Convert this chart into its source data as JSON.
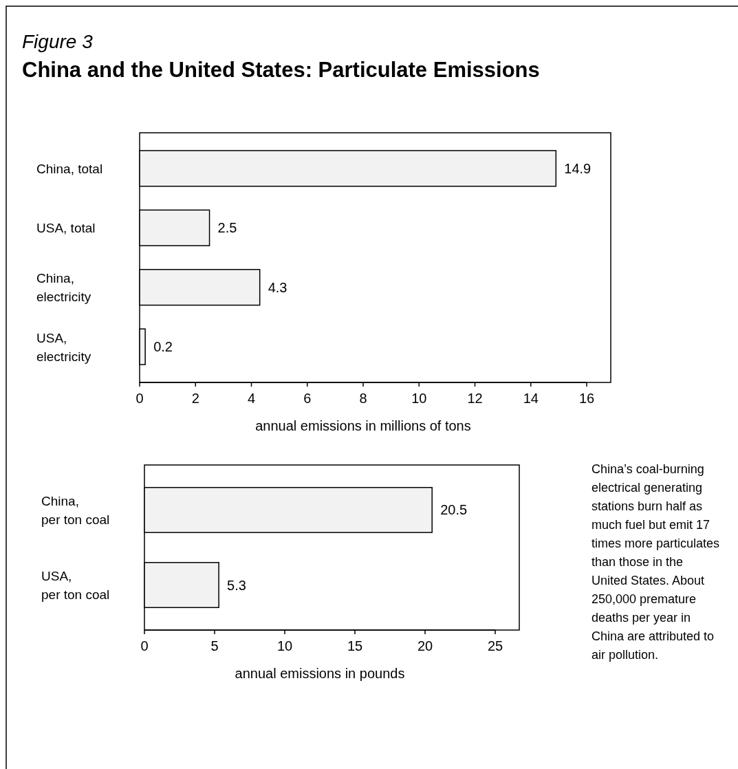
{
  "chart_data": [
    {
      "type": "bar",
      "orientation": "horizontal",
      "subtitle": "Figure 3",
      "title": "China and the United States: Particulate Emissions",
      "categories": [
        "China, total",
        "USA, total",
        "China, electricity",
        "USA, electricity"
      ],
      "values": [
        14.9,
        2.5,
        4.3,
        0.2
      ],
      "color": "#f2f2f2",
      "xlim": [
        0,
        16
      ],
      "xticks": [
        0,
        2,
        4,
        6,
        8,
        10,
        12,
        14,
        16
      ],
      "xlabel": "annual emissions in millions of tons",
      "data_labels": true,
      "grid": false
    },
    {
      "type": "bar",
      "orientation": "horizontal",
      "categories": [
        "China, per ton coal",
        "USA, per ton coal"
      ],
      "values": [
        20.5,
        5.3
      ],
      "color": "#f2f2f2",
      "xlim": [
        0,
        25
      ],
      "xticks": [
        0,
        5,
        10,
        15,
        20,
        25
      ],
      "xlabel": "annual emissions in pounds",
      "data_labels": true,
      "grid": false,
      "annotations": [
        "China’s coal-burning electrical generating stations burn half as much fuel but emit 17 times more particulates than those in the United States. About 250,000 premature deaths per year in China are attributed to air pollution."
      ]
    }
  ]
}
